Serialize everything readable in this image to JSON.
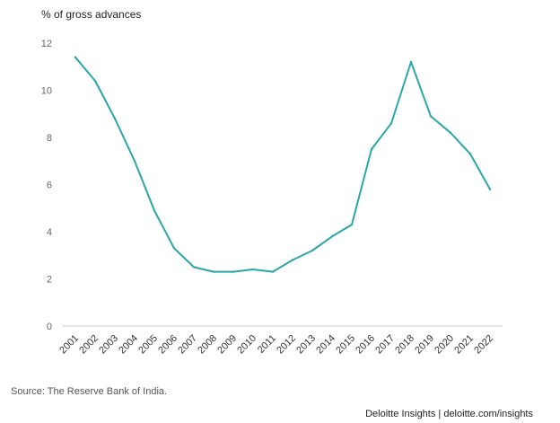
{
  "chart_data": {
    "type": "line",
    "title": "",
    "ylabel": "% of gross advances",
    "xlabel": "",
    "ylim": [
      0,
      12
    ],
    "yticks": [
      0,
      2,
      4,
      6,
      8,
      10,
      12
    ],
    "grid": false,
    "x": [
      "2001",
      "2002",
      "2003",
      "2004",
      "2005",
      "2006",
      "2007",
      "2008",
      "2009",
      "2010",
      "2011",
      "2012",
      "2013",
      "2014",
      "2015",
      "2016",
      "2017",
      "2018",
      "2019",
      "2020",
      "2021",
      "2022"
    ],
    "series": [
      {
        "values": [
          11.4,
          10.4,
          8.8,
          7.0,
          4.9,
          3.3,
          2.5,
          2.3,
          2.3,
          2.4,
          2.3,
          2.8,
          3.2,
          3.8,
          4.3,
          7.5,
          8.6,
          11.2,
          8.9,
          8.2,
          7.3,
          5.8
        ],
        "color": "#2aa7a8"
      }
    ]
  },
  "footer": {
    "source": "Source: The Reserve Bank of India.",
    "branding": "Deloitte Insights | deloitte.com/insights"
  }
}
